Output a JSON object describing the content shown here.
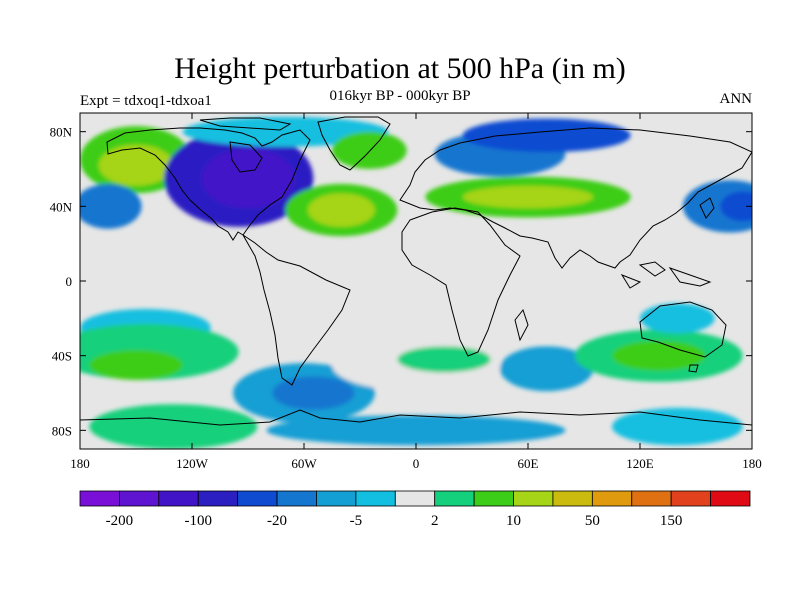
{
  "title": "Height perturbation at 500 hPa (in m)",
  "subtitle": "016kyr BP - 000kyr BP",
  "left_label": "Expt = tdxoq1-tdxoa1",
  "right_label": "ANN",
  "map": {
    "projection": "cylindrical-equidistant",
    "lon_range": [
      -180,
      180
    ],
    "lat_range": [
      -90,
      90
    ],
    "lon_ticks": [
      {
        "value": -180,
        "label": "180"
      },
      {
        "value": -120,
        "label": "120W"
      },
      {
        "value": -60,
        "label": "60W"
      },
      {
        "value": 0,
        "label": "0"
      },
      {
        "value": 60,
        "label": "60E"
      },
      {
        "value": 120,
        "label": "120E"
      },
      {
        "value": 180,
        "label": "180"
      }
    ],
    "lat_ticks": [
      {
        "value": 80,
        "label": "80N"
      },
      {
        "value": 40,
        "label": "40N"
      },
      {
        "value": 0,
        "label": "0"
      },
      {
        "value": -40,
        "label": "40S"
      },
      {
        "value": -80,
        "label": "80S"
      }
    ],
    "neutral_color": "#e6e6e6",
    "regions": [
      {
        "lon": -150,
        "lat": 65,
        "rx": 30,
        "ry": 18,
        "level": 10
      },
      {
        "lon": -150,
        "lat": 62,
        "rx": 20,
        "ry": 11,
        "level": 11
      },
      {
        "lon": -165,
        "lat": 40,
        "rx": 18,
        "ry": 12,
        "level": 5
      },
      {
        "lon": -95,
        "lat": 55,
        "rx": 40,
        "ry": 26,
        "level": 3
      },
      {
        "lon": -90,
        "lat": 55,
        "rx": 25,
        "ry": 16,
        "level": 2
      },
      {
        "lon": -70,
        "lat": 80,
        "rx": 55,
        "ry": 8,
        "level": 7
      },
      {
        "lon": -40,
        "lat": 38,
        "rx": 30,
        "ry": 14,
        "level": 10
      },
      {
        "lon": -40,
        "lat": 38,
        "rx": 18,
        "ry": 9,
        "level": 11
      },
      {
        "lon": -25,
        "lat": 70,
        "rx": 20,
        "ry": 10,
        "level": 10
      },
      {
        "lon": 45,
        "lat": 68,
        "rx": 35,
        "ry": 12,
        "level": 5
      },
      {
        "lon": 70,
        "lat": 78,
        "rx": 45,
        "ry": 9,
        "level": 4
      },
      {
        "lon": 60,
        "lat": 45,
        "rx": 55,
        "ry": 11,
        "level": 10
      },
      {
        "lon": 60,
        "lat": 45,
        "rx": 35,
        "ry": 6,
        "level": 11
      },
      {
        "lon": 168,
        "lat": 40,
        "rx": 25,
        "ry": 14,
        "level": 5
      },
      {
        "lon": 175,
        "lat": 40,
        "rx": 12,
        "ry": 8,
        "level": 4
      },
      {
        "lon": -145,
        "lat": -25,
        "rx": 35,
        "ry": 10,
        "level": 7
      },
      {
        "lon": -145,
        "lat": -38,
        "rx": 50,
        "ry": 15,
        "level": 9
      },
      {
        "lon": -150,
        "lat": -45,
        "rx": 25,
        "ry": 8,
        "level": 10
      },
      {
        "lon": -60,
        "lat": -60,
        "rx": 38,
        "ry": 16,
        "level": 6
      },
      {
        "lon": -55,
        "lat": -60,
        "rx": 22,
        "ry": 9,
        "level": 5
      },
      {
        "lon": 0,
        "lat": -45,
        "rx": 45,
        "ry": 14,
        "level": 8
      },
      {
        "lon": 15,
        "lat": -42,
        "rx": 25,
        "ry": 7,
        "level": 9
      },
      {
        "lon": 70,
        "lat": -47,
        "rx": 25,
        "ry": 12,
        "level": 6
      },
      {
        "lon": 130,
        "lat": -40,
        "rx": 45,
        "ry": 14,
        "level": 9
      },
      {
        "lon": 130,
        "lat": -40,
        "rx": 25,
        "ry": 8,
        "level": 10
      },
      {
        "lon": 140,
        "lat": -20,
        "rx": 20,
        "ry": 8,
        "level": 7
      },
      {
        "lon": -130,
        "lat": -78,
        "rx": 45,
        "ry": 12,
        "level": 9
      },
      {
        "lon": 0,
        "lat": -80,
        "rx": 80,
        "ry": 8,
        "level": 6
      },
      {
        "lon": 140,
        "lat": -78,
        "rx": 35,
        "ry": 10,
        "level": 7
      }
    ]
  },
  "colorbar": {
    "colors": [
      "#7a10d8",
      "#5f14d1",
      "#4214c8",
      "#2b1fc2",
      "#0f4bd1",
      "#1476cf",
      "#139fd4",
      "#12bfe0",
      "#e6e6e6",
      "#14d07c",
      "#3ccd18",
      "#a6d416",
      "#cbbb0f",
      "#df9a0d",
      "#e07113",
      "#e1421d",
      "#e00a14"
    ],
    "labels": [
      {
        "boundary": 1,
        "text": "-200"
      },
      {
        "boundary": 3,
        "text": "-100"
      },
      {
        "boundary": 5,
        "text": "-20"
      },
      {
        "boundary": 7,
        "text": "-5"
      },
      {
        "boundary": 9,
        "text": "2"
      },
      {
        "boundary": 11,
        "text": "10"
      },
      {
        "boundary": 13,
        "text": "50"
      },
      {
        "boundary": 15,
        "text": "150"
      }
    ]
  }
}
